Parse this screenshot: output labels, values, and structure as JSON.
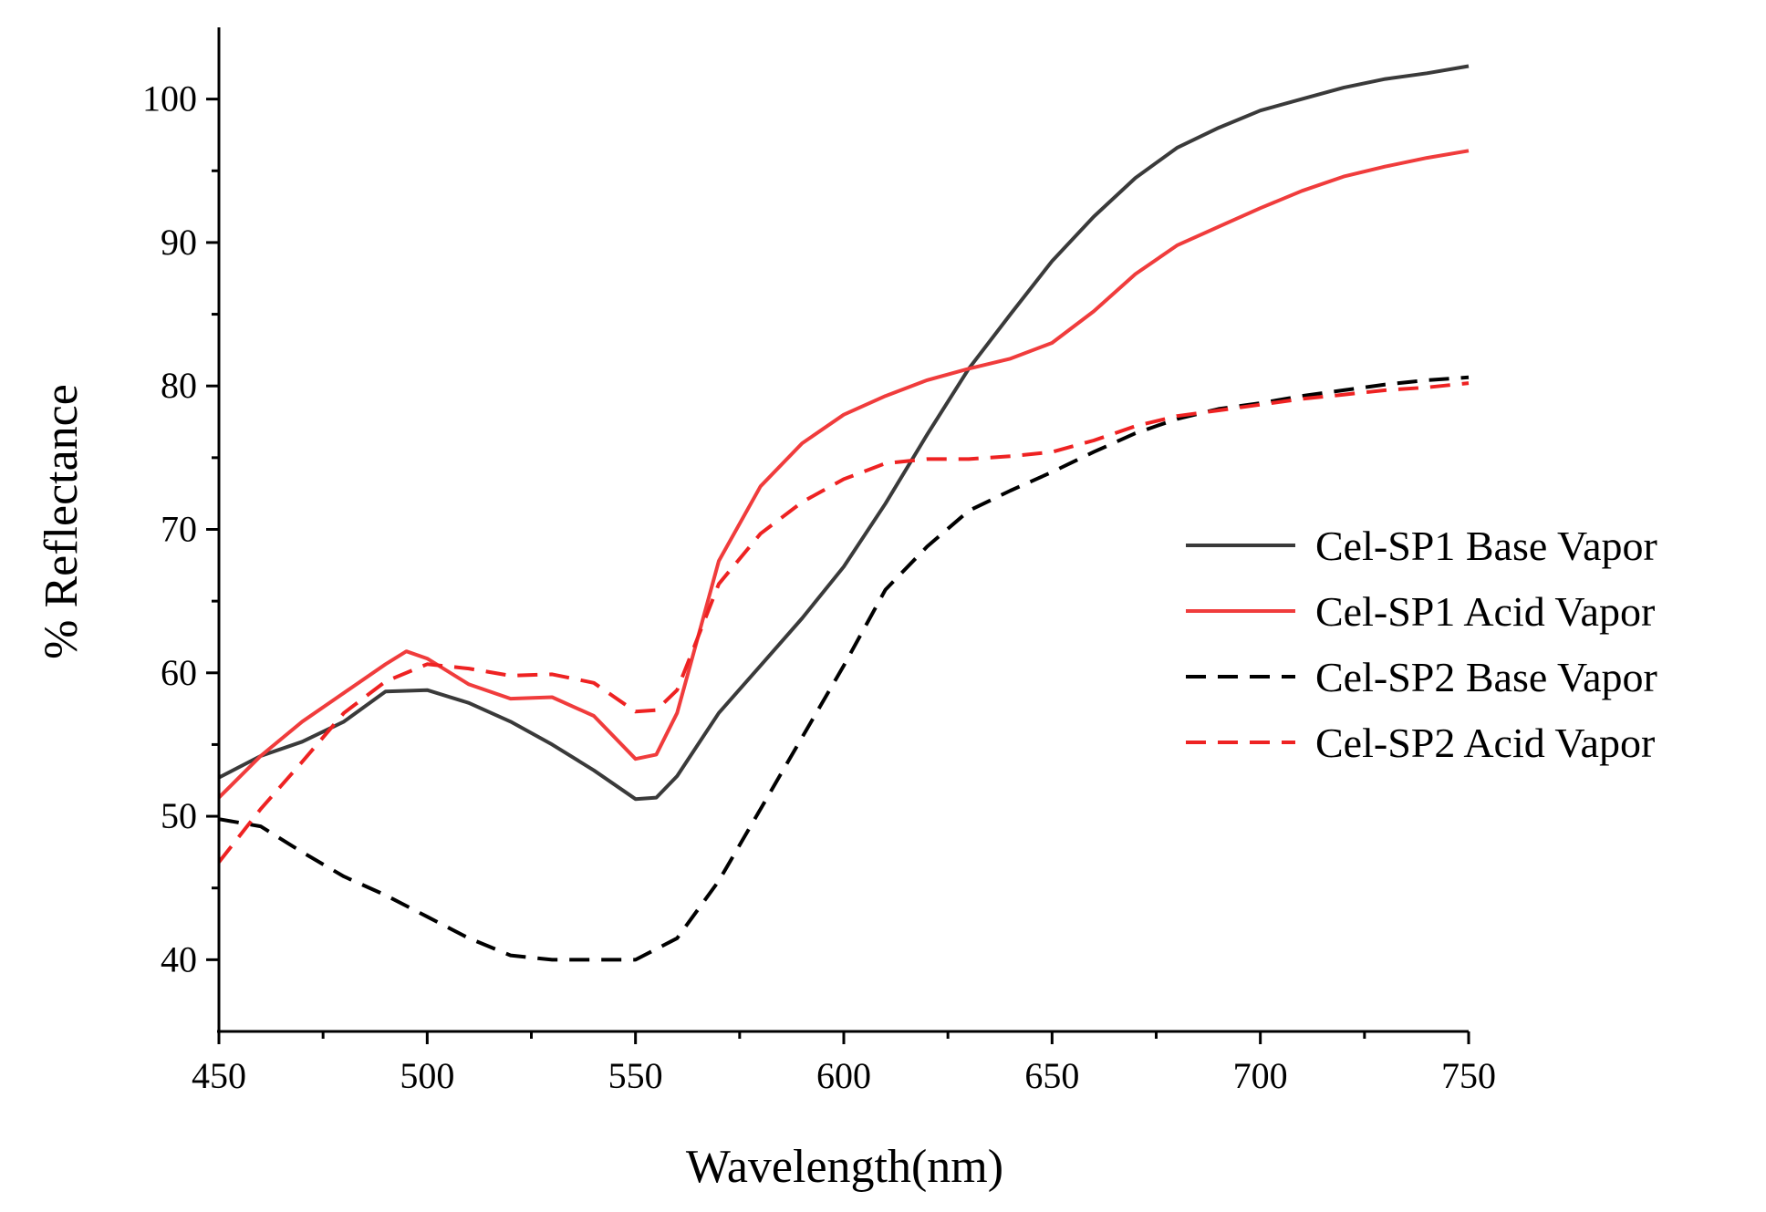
{
  "chart_data": {
    "type": "line",
    "title": "",
    "xlabel": "Wavelength(nm)",
    "ylabel": "% Reflectance",
    "xlim": [
      450,
      750
    ],
    "ylim": [
      35,
      105
    ],
    "xticks": [
      450,
      500,
      550,
      600,
      650,
      700,
      750
    ],
    "yticks": [
      40,
      50,
      60,
      70,
      80,
      90,
      100
    ],
    "grid": false,
    "legend_position": "right",
    "series": [
      {
        "name": "Cel-SP1 Base Vapor",
        "color": "#3a3a3a",
        "dash": "solid",
        "x": [
          450,
          460,
          470,
          480,
          490,
          500,
          510,
          520,
          530,
          540,
          550,
          555,
          560,
          570,
          580,
          590,
          600,
          610,
          620,
          630,
          640,
          650,
          660,
          670,
          680,
          690,
          700,
          710,
          720,
          730,
          740,
          750
        ],
        "y": [
          52.7,
          54.2,
          55.2,
          56.6,
          58.7,
          58.8,
          57.9,
          56.6,
          55.0,
          53.2,
          51.2,
          51.3,
          52.8,
          57.2,
          60.5,
          63.8,
          67.4,
          71.8,
          76.6,
          81.2,
          85.0,
          88.7,
          91.8,
          94.5,
          96.6,
          98.0,
          99.2,
          100.0,
          100.8,
          101.4,
          101.8,
          102.3
        ]
      },
      {
        "name": "Cel-SP1 Acid Vapor",
        "color": "#f03c3c",
        "dash": "solid",
        "x": [
          450,
          460,
          470,
          480,
          490,
          495,
          500,
          510,
          520,
          530,
          540,
          550,
          555,
          560,
          565,
          570,
          580,
          590,
          600,
          610,
          620,
          630,
          640,
          650,
          660,
          670,
          680,
          690,
          700,
          710,
          720,
          730,
          740,
          750
        ],
        "y": [
          51.3,
          54.2,
          56.6,
          58.6,
          60.6,
          61.5,
          61.0,
          59.2,
          58.2,
          58.3,
          57.0,
          54.0,
          54.3,
          57.2,
          62.5,
          67.8,
          73.0,
          76.0,
          78.0,
          79.3,
          80.4,
          81.2,
          81.9,
          83.0,
          85.2,
          87.8,
          89.8,
          91.1,
          92.4,
          93.6,
          94.6,
          95.3,
          95.9,
          96.4
        ]
      },
      {
        "name": "Cel-SP2 Base Vapor",
        "color": "#000000",
        "dash": "dashed",
        "x": [
          450,
          460,
          470,
          480,
          490,
          500,
          510,
          520,
          530,
          540,
          550,
          560,
          570,
          580,
          590,
          600,
          610,
          620,
          630,
          640,
          650,
          660,
          670,
          680,
          690,
          700,
          710,
          720,
          730,
          740,
          750
        ],
        "y": [
          49.8,
          49.3,
          47.5,
          45.8,
          44.5,
          43.0,
          41.5,
          40.3,
          40.0,
          40.0,
          40.0,
          41.5,
          45.5,
          50.5,
          55.5,
          60.5,
          65.8,
          68.8,
          71.3,
          72.7,
          74.0,
          75.4,
          76.7,
          77.7,
          78.4,
          78.8,
          79.3,
          79.7,
          80.1,
          80.4,
          80.6
        ]
      },
      {
        "name": "Cel-SP2 Acid Vapor",
        "color": "#ee2222",
        "dash": "dashed",
        "x": [
          450,
          460,
          470,
          480,
          490,
          500,
          510,
          520,
          530,
          540,
          550,
          555,
          560,
          565,
          570,
          580,
          590,
          600,
          610,
          620,
          630,
          640,
          650,
          660,
          670,
          680,
          690,
          700,
          710,
          720,
          730,
          740,
          750
        ],
        "y": [
          46.8,
          50.5,
          53.8,
          57.2,
          59.4,
          60.6,
          60.3,
          59.8,
          59.9,
          59.3,
          57.3,
          57.4,
          58.8,
          62.5,
          66.2,
          69.7,
          71.9,
          73.5,
          74.6,
          74.9,
          74.9,
          75.1,
          75.4,
          76.2,
          77.2,
          77.9,
          78.3,
          78.7,
          79.1,
          79.4,
          79.7,
          79.9,
          80.2
        ]
      }
    ]
  }
}
